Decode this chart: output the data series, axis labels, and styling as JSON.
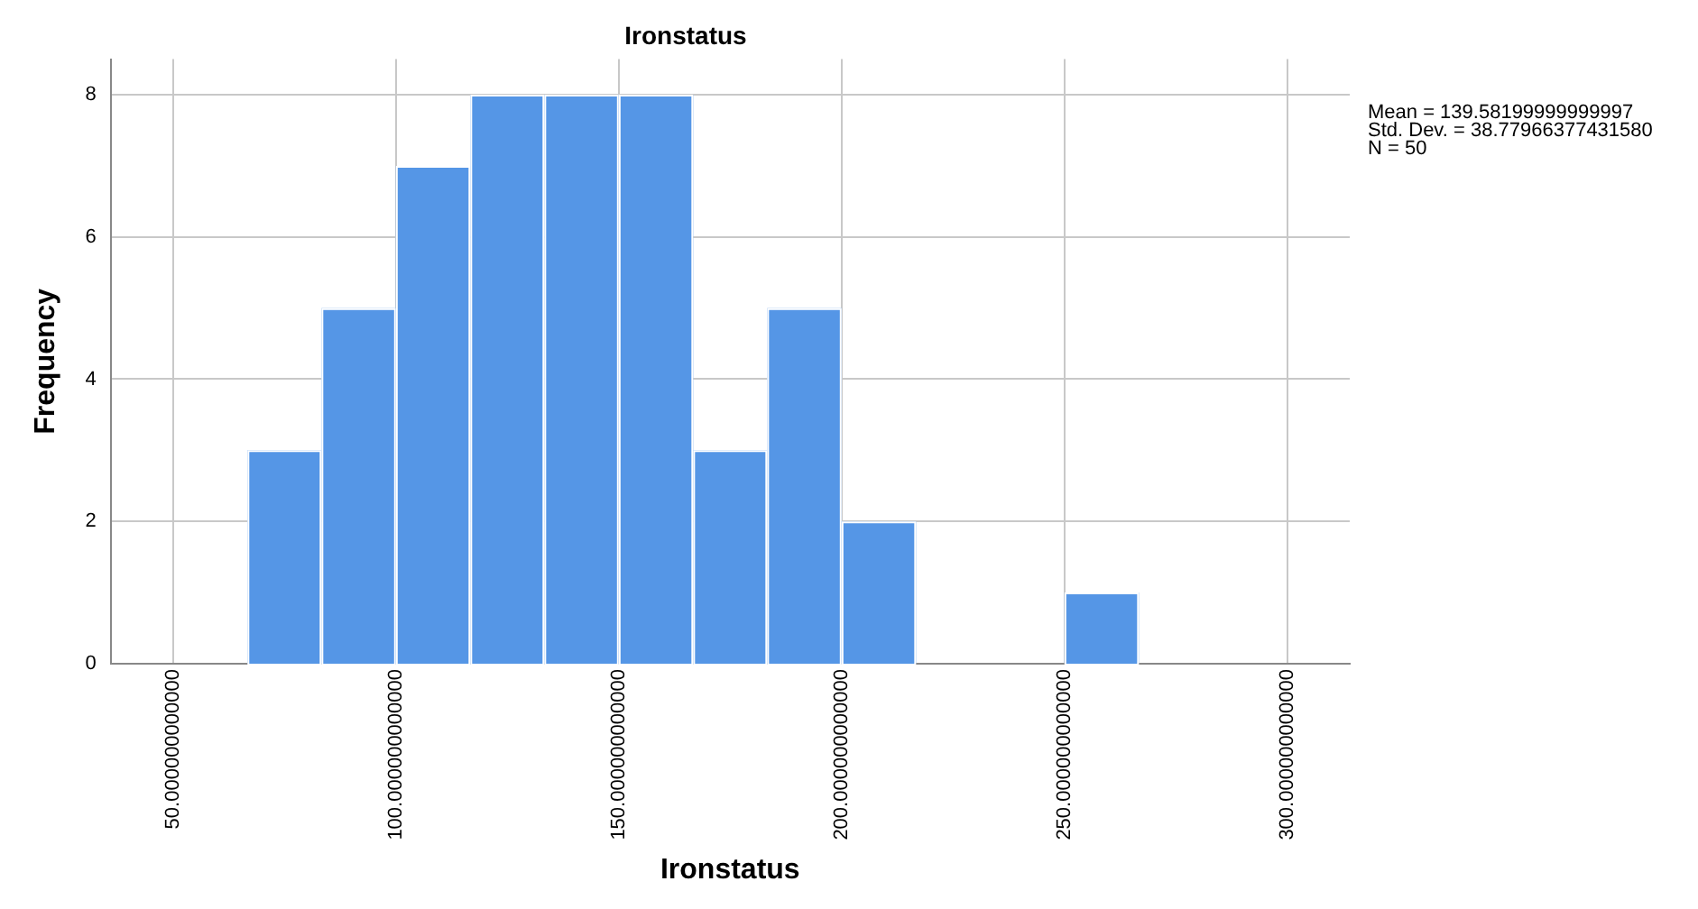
{
  "chart_data": {
    "type": "histogram",
    "title": "Ironstatus",
    "xlabel": "Ironstatus",
    "ylabel": "Frequency",
    "bins": [
      66.7,
      83.3,
      100,
      116.7,
      133.3,
      150,
      166.7,
      183.3,
      200,
      216.7,
      233.3,
      250,
      266.7
    ],
    "values": [
      3,
      5,
      7,
      8,
      8,
      8,
      3,
      5,
      2,
      0,
      0,
      1
    ],
    "color": "#5596e6",
    "xlim": [
      36,
      314
    ],
    "xticks": [
      {
        "value": 50,
        "label": "50.000000000000"
      },
      {
        "value": 100,
        "label": "100.000000000000"
      },
      {
        "value": 150,
        "label": "150.000000000000"
      },
      {
        "value": 200,
        "label": "200.000000000000"
      },
      {
        "value": 250,
        "label": "250.000000000000"
      },
      {
        "value": 300,
        "label": "300.000000000000"
      }
    ],
    "ylim": [
      0,
      8.5
    ],
    "yticks": [
      0,
      2,
      4,
      6,
      8
    ],
    "grid": true,
    "legend": false,
    "annotations": [
      "Mean = 139.58199999999997",
      "Std. Dev. = 38.77966377431580",
      "N = 50"
    ]
  }
}
